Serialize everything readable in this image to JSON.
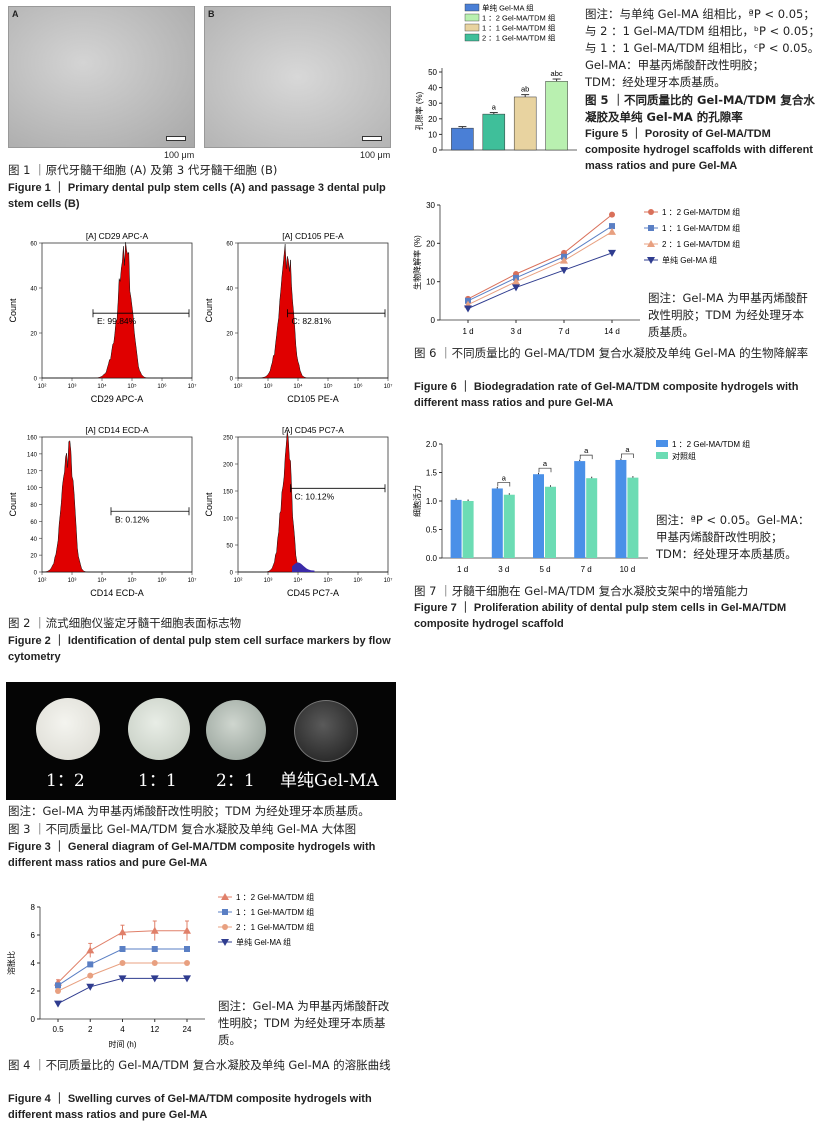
{
  "fig1": {
    "panel_a": "A",
    "panel_b": "B",
    "scale_a": "100 μm",
    "scale_b": "100 μm",
    "caption_zh": "图 1 ｜原代牙髓干细胞 (A) 及第 3 代牙髓干细胞 (B)",
    "caption_en": "Figure 1 ｜ Primary dental pulp stem cells (A) and passage 3 dental pulp stem cells (B)"
  },
  "fig2": {
    "panels": [
      {
        "title": "[A] CD29 APC-A",
        "xlabel": "CD29 APC-A",
        "gate": "E: 99.84%",
        "color": "#e00000",
        "ymax": 60,
        "yticks": [
          0,
          20,
          40,
          60
        ]
      },
      {
        "title": "[A] CD105 PE-A",
        "xlabel": "CD105 PE-A",
        "gate": "C: 82.81%",
        "color": "#e00000",
        "ymax": 60,
        "yticks": [
          0,
          20,
          40,
          60
        ]
      },
      {
        "title": "[A] CD14 ECD-A",
        "xlabel": "CD14 ECD-A",
        "gate": "B: 0.12%",
        "color": "#e00000",
        "ymax": 160,
        "yticks": [
          0,
          20,
          40,
          60,
          80,
          100,
          120,
          140,
          160
        ]
      },
      {
        "title": "[A] CD45 PC7-A",
        "xlabel": "CD45 PC7-A",
        "gate": "C: 10.12%",
        "color": "#e00000",
        "ymax": 250,
        "yticks": [
          0,
          50,
          100,
          150,
          200,
          250
        ]
      }
    ],
    "ylabel": "Count",
    "xticks": [
      "10²",
      "10³",
      "10⁴",
      "10⁵",
      "10⁶",
      "10⁷"
    ],
    "caption_zh": "图 2 ｜流式细胞仪鉴定牙髓干细胞表面标志物",
    "caption_en": "Figure 2 ｜ Identification of dental pulp stem cell surface markers by flow cytometry"
  },
  "fig3": {
    "labels": [
      "1：2",
      "1：1",
      "2：1",
      "单纯Gel-MA"
    ],
    "note": "图注：Gel-MA 为甲基丙烯酸酐改性明胶；TDM 为经处理牙本质基质。",
    "caption_zh": "图 3 ｜不同质量比 Gel-MA/TDM 复合水凝胶及单纯 Gel-MA 大体图",
    "caption_en": "Figure 3 ｜ General diagram of Gel-MA/TDM composite hydrogels with different mass ratios and pure Gel-MA"
  },
  "fig4": {
    "note": "图注：Gel-MA 为甲基丙烯酸酐改性明胶；TDM 为经处理牙本质基质。",
    "caption_zh": "图 4 ｜不同质量比的 Gel-MA/TDM 复合水凝胶及单纯 Gel-MA 的溶胀曲线",
    "caption_en": "Figure 4 ｜ Swelling curves of Gel-MA/TDM composite hydrogels with different mass ratios and pure Gel-MA"
  },
  "fig5": {
    "note_lines": [
      "图注：与单纯 Gel-MA 组相比，ªP < 0.05；",
      "与 2 ：1 Gel-MA/TDM 组相比，ᵇP < 0.05；",
      "与 1 ：1 Gel-MA/TDM 组相比，ᶜP < 0.05。",
      "Gel-MA：甲基丙烯酸酐改性明胶；",
      "TDM：经处理牙本质基质。"
    ],
    "caption_zh": "图 5 ｜不同质量比的 Gel-MA/TDM 复合水凝胶及单纯 Gel-MA 的孔隙率",
    "caption_en": "Figure 5 ｜ Porosity of Gel-MA/TDM composite hydrogel scaffolds with different mass ratios and pure Gel-MA"
  },
  "fig6": {
    "note": "图注：Gel-MA 为甲基丙烯酸酐改性明胶；TDM 为经处理牙本质基质。",
    "caption_zh": "图 6 ｜不同质量比的 Gel-MA/TDM 复合水凝胶及单纯 Gel-MA 的生物降解率",
    "caption_en": "Figure 6 ｜ Biodegradation rate of Gel-MA/TDM composite hydrogels with different mass ratios and pure Gel-MA"
  },
  "fig7": {
    "note": "图注：ªP < 0.05。Gel-MA：甲基丙烯酸酐改性明胶；TDM：经处理牙本质基质。",
    "caption_zh": "图 7 ｜牙髓干细胞在 Gel-MA/TDM 复合水凝胶支架中的增殖能力",
    "caption_en": "Figure 7 ｜ Proliferation ability of dental pulp stem cells in Gel-MA/TDM composite hydrogel scaffold"
  },
  "chart_data": [
    {
      "id": "fig4",
      "type": "line",
      "x": [
        "0.5",
        "2",
        "4",
        "12",
        "24"
      ],
      "xlabel": "时间 (h)",
      "ylabel": "溶胀比",
      "ylim": [
        0,
        8
      ],
      "yticks": [
        0,
        2,
        4,
        6,
        8
      ],
      "legend_position": "top-right",
      "series": [
        {
          "name": "1 ：2 Gel-MA/TDM 组",
          "color": "#e0806a",
          "marker": "triangle-up",
          "values": [
            2.6,
            4.9,
            6.2,
            6.3,
            6.3
          ],
          "err": [
            0.2,
            0.5,
            0.5,
            0.7,
            0.7
          ]
        },
        {
          "name": "1 ：1 Gel-MA/TDM 组",
          "color": "#5a7fc4",
          "marker": "square",
          "values": [
            2.4,
            3.9,
            5.0,
            5.0,
            5.0
          ],
          "err": [
            0,
            0,
            0,
            0,
            0
          ]
        },
        {
          "name": "2 ：1 Gel-MA/TDM 组",
          "color": "#e8a080",
          "marker": "circle",
          "values": [
            2.0,
            3.1,
            4.0,
            4.0,
            4.0
          ],
          "err": [
            0,
            0,
            0,
            0,
            0
          ]
        },
        {
          "name": "单纯 Gel-MA 组",
          "color": "#2f3c8f",
          "marker": "triangle-down",
          "values": [
            1.1,
            2.3,
            2.9,
            2.9,
            2.9
          ],
          "err": [
            0,
            0,
            0,
            0,
            0
          ]
        }
      ]
    },
    {
      "id": "fig5",
      "type": "bar",
      "categories": [
        "单纯 Gel-MA 组",
        "2 ：1 Gel-MA/TDM 组",
        "1 ：1 Gel-MA/TDM 组",
        "1 ：2 Gel-MA/TDM 组"
      ],
      "values": [
        14,
        23,
        34,
        44
      ],
      "err": [
        1,
        1,
        1.5,
        1.5
      ],
      "colors": [
        "#4a7fd6",
        "#3fbf9a",
        "#e8d3a0",
        "#b9f0b0"
      ],
      "sig": [
        "",
        "a",
        "ab",
        "abc"
      ],
      "ylabel": "孔隙率 (%)",
      "ylim": [
        0,
        50
      ],
      "yticks": [
        0,
        10,
        20,
        30,
        40,
        50
      ],
      "legend_position": "top-left"
    },
    {
      "id": "fig6",
      "type": "line",
      "x": [
        "1 d",
        "3 d",
        "7 d",
        "14 d"
      ],
      "ylabel": "生物降解率 (%)",
      "ylim": [
        0,
        30
      ],
      "yticks": [
        0,
        10,
        20,
        30
      ],
      "legend_position": "right",
      "series": [
        {
          "name": "1 ：2 Gel-MA/TDM 组",
          "color": "#d9705a",
          "marker": "circle",
          "values": [
            5.5,
            12,
            17.5,
            27.5
          ]
        },
        {
          "name": "1 ：1 Gel-MA/TDM 组",
          "color": "#5a7fc4",
          "marker": "square",
          "values": [
            5,
            11,
            16.5,
            24.5
          ]
        },
        {
          "name": "2 ：1 Gel-MA/TDM 组",
          "color": "#e8a080",
          "marker": "triangle-up",
          "values": [
            4,
            10,
            15.5,
            23
          ]
        },
        {
          "name": "单纯 Gel-MA 组",
          "color": "#2f3c8f",
          "marker": "triangle-down",
          "values": [
            3,
            8.5,
            13,
            17.5
          ]
        }
      ]
    },
    {
      "id": "fig7",
      "type": "bar",
      "categories": [
        "1 d",
        "3 d",
        "5 d",
        "7 d",
        "10 d"
      ],
      "ylabel": "细胞活力",
      "ylim": [
        0,
        2.0
      ],
      "yticks": [
        0,
        0.5,
        1.0,
        1.5,
        2.0
      ],
      "legend_position": "top-right",
      "series": [
        {
          "name": "1 ：2 Gel-MA/TDM 组",
          "color": "#4a90e8",
          "values": [
            1.02,
            1.22,
            1.47,
            1.7,
            1.72
          ]
        },
        {
          "name": "对照组",
          "color": "#6cdcb4",
          "values": [
            1.0,
            1.11,
            1.25,
            1.4,
            1.41
          ]
        }
      ],
      "sig": [
        "",
        "a",
        "a",
        "a",
        "a"
      ]
    }
  ]
}
